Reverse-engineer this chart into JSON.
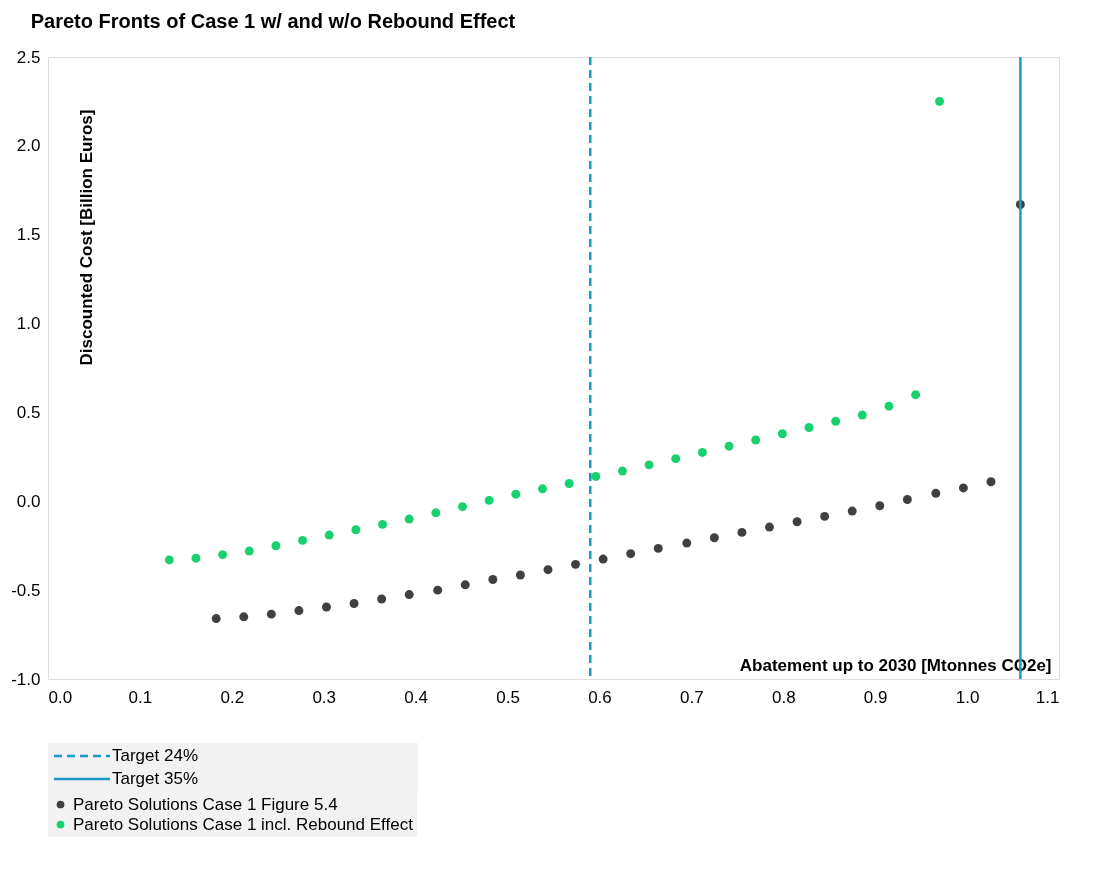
{
  "chart_data": {
    "type": "scatter",
    "title": "Pareto Fronts of Case 1 w/ and w/o Rebound Effect",
    "xlabel": "Abatement up to 2030 [Mtonnes CO2e]",
    "ylabel": "Discounted Cost [Billion Euros]",
    "xlim": [
      0.0,
      1.1
    ],
    "xticks": [
      {
        "value": 0,
        "label": "0.0"
      },
      0.1,
      0.2,
      0.3,
      0.4,
      0.5,
      0.6,
      0.7,
      0.8,
      0.9,
      {
        "value": 1,
        "label": "1.0"
      },
      1.1
    ],
    "ylim": [
      -1.0,
      2.5
    ],
    "yticks": [
      {
        "value": -1,
        "label": "-1.0"
      },
      -0.5,
      {
        "value": 0,
        "label": "0.0"
      },
      0.5,
      {
        "value": 1,
        "label": "1.0"
      },
      1.5,
      {
        "value": 2,
        "label": "2.0"
      },
      2.5
    ],
    "grid": false,
    "legend": "bottom",
    "marker": "circle",
    "ref_lines": [
      {
        "axis": "x",
        "value": 0.59,
        "label": "Target 24%",
        "color": "#1b9ac6",
        "line_style": "dashed"
      },
      {
        "axis": "x",
        "value": 1.058,
        "label": "Target 35%",
        "color": "#1b9ac6",
        "line_style": "solid"
      }
    ],
    "series": [
      {
        "name": "Pareto Solutions Case 1 Figure 5.4",
        "color": "#404040",
        "x": [
          0.183,
          0.213,
          0.243,
          0.273,
          0.303,
          0.333,
          0.363,
          0.393,
          0.424,
          0.454,
          0.484,
          0.514,
          0.544,
          0.574,
          0.604,
          0.634,
          0.664,
          0.695,
          0.725,
          0.755,
          0.785,
          0.815,
          0.845,
          0.875,
          0.905,
          0.935,
          0.966,
          0.996,
          1.026,
          1.058
        ],
        "values": [
          -0.66,
          -0.65,
          -0.635,
          -0.615,
          -0.595,
          -0.575,
          -0.55,
          -0.525,
          -0.5,
          -0.47,
          -0.44,
          -0.415,
          -0.385,
          -0.355,
          -0.325,
          -0.295,
          -0.265,
          -0.235,
          -0.205,
          -0.175,
          -0.145,
          -0.115,
          -0.085,
          -0.055,
          -0.025,
          0.01,
          0.045,
          0.075,
          0.11,
          1.67
        ]
      },
      {
        "name": "Pareto Solutions Case 1 incl. Rebound Effect",
        "color": "#16d16e",
        "x": [
          0.132,
          0.161,
          0.19,
          0.219,
          0.248,
          0.277,
          0.306,
          0.335,
          0.364,
          0.393,
          0.422,
          0.451,
          0.48,
          0.509,
          0.538,
          0.567,
          0.596,
          0.625,
          0.654,
          0.683,
          0.712,
          0.741,
          0.77,
          0.799,
          0.828,
          0.857,
          0.886,
          0.915,
          0.944,
          0.97
        ],
        "values": [
          -0.33,
          -0.32,
          -0.3,
          -0.28,
          -0.25,
          -0.22,
          -0.19,
          -0.16,
          -0.13,
          -0.1,
          -0.065,
          -0.03,
          0.005,
          0.04,
          0.07,
          0.1,
          0.14,
          0.17,
          0.205,
          0.24,
          0.275,
          0.31,
          0.345,
          0.38,
          0.415,
          0.45,
          0.485,
          0.535,
          0.6,
          2.25
        ]
      }
    ]
  }
}
